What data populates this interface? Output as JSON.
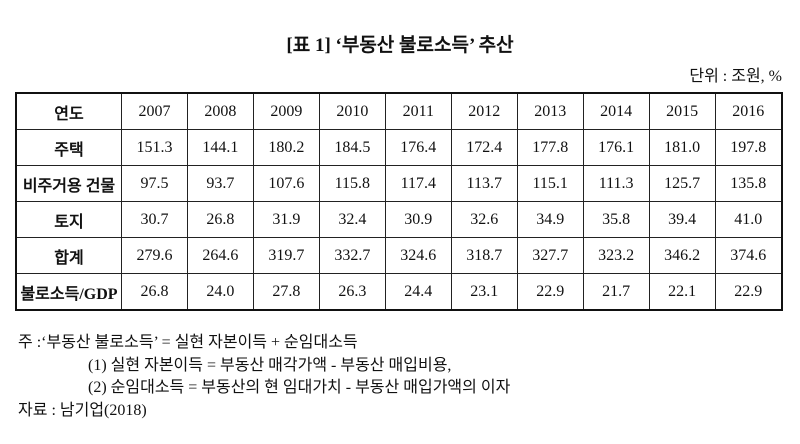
{
  "title": "[표 1] ‘부동산 불로소득’ 추산",
  "unit": "단위 : 조원, %",
  "table": {
    "header": [
      "연도",
      "2007",
      "2008",
      "2009",
      "2010",
      "2011",
      "2012",
      "2013",
      "2014",
      "2015",
      "2016"
    ],
    "rows": [
      [
        "주택",
        "151.3",
        "144.1",
        "180.2",
        "184.5",
        "176.4",
        "172.4",
        "177.8",
        "176.1",
        "181.0",
        "197.8"
      ],
      [
        "비주거용 건물",
        "97.5",
        "93.7",
        "107.6",
        "115.8",
        "117.4",
        "113.7",
        "115.1",
        "111.3",
        "125.7",
        "135.8"
      ],
      [
        "토지",
        "30.7",
        "26.8",
        "31.9",
        "32.4",
        "30.9",
        "32.6",
        "34.9",
        "35.8",
        "39.4",
        "41.0"
      ],
      [
        "합계",
        "279.6",
        "264.6",
        "319.7",
        "332.7",
        "324.6",
        "318.7",
        "327.7",
        "323.2",
        "346.2",
        "374.6"
      ],
      [
        "불로소득/GDP",
        "26.8",
        "24.0",
        "27.8",
        "26.3",
        "24.4",
        "23.1",
        "22.9",
        "21.7",
        "22.1",
        "22.9"
      ]
    ]
  },
  "notes": [
    "주 :‘부동산 불로소득’ = 실현 자본이득 + 순임대소득",
    "(1) 실현 자본이득 = 부동산 매각가액 - 부동산 매입비용,",
    "(2) 순임대소득 = 부동산의 현 임대가치 - 부동산 매입가액의 이자",
    "자료 : 남기업(2018)"
  ]
}
